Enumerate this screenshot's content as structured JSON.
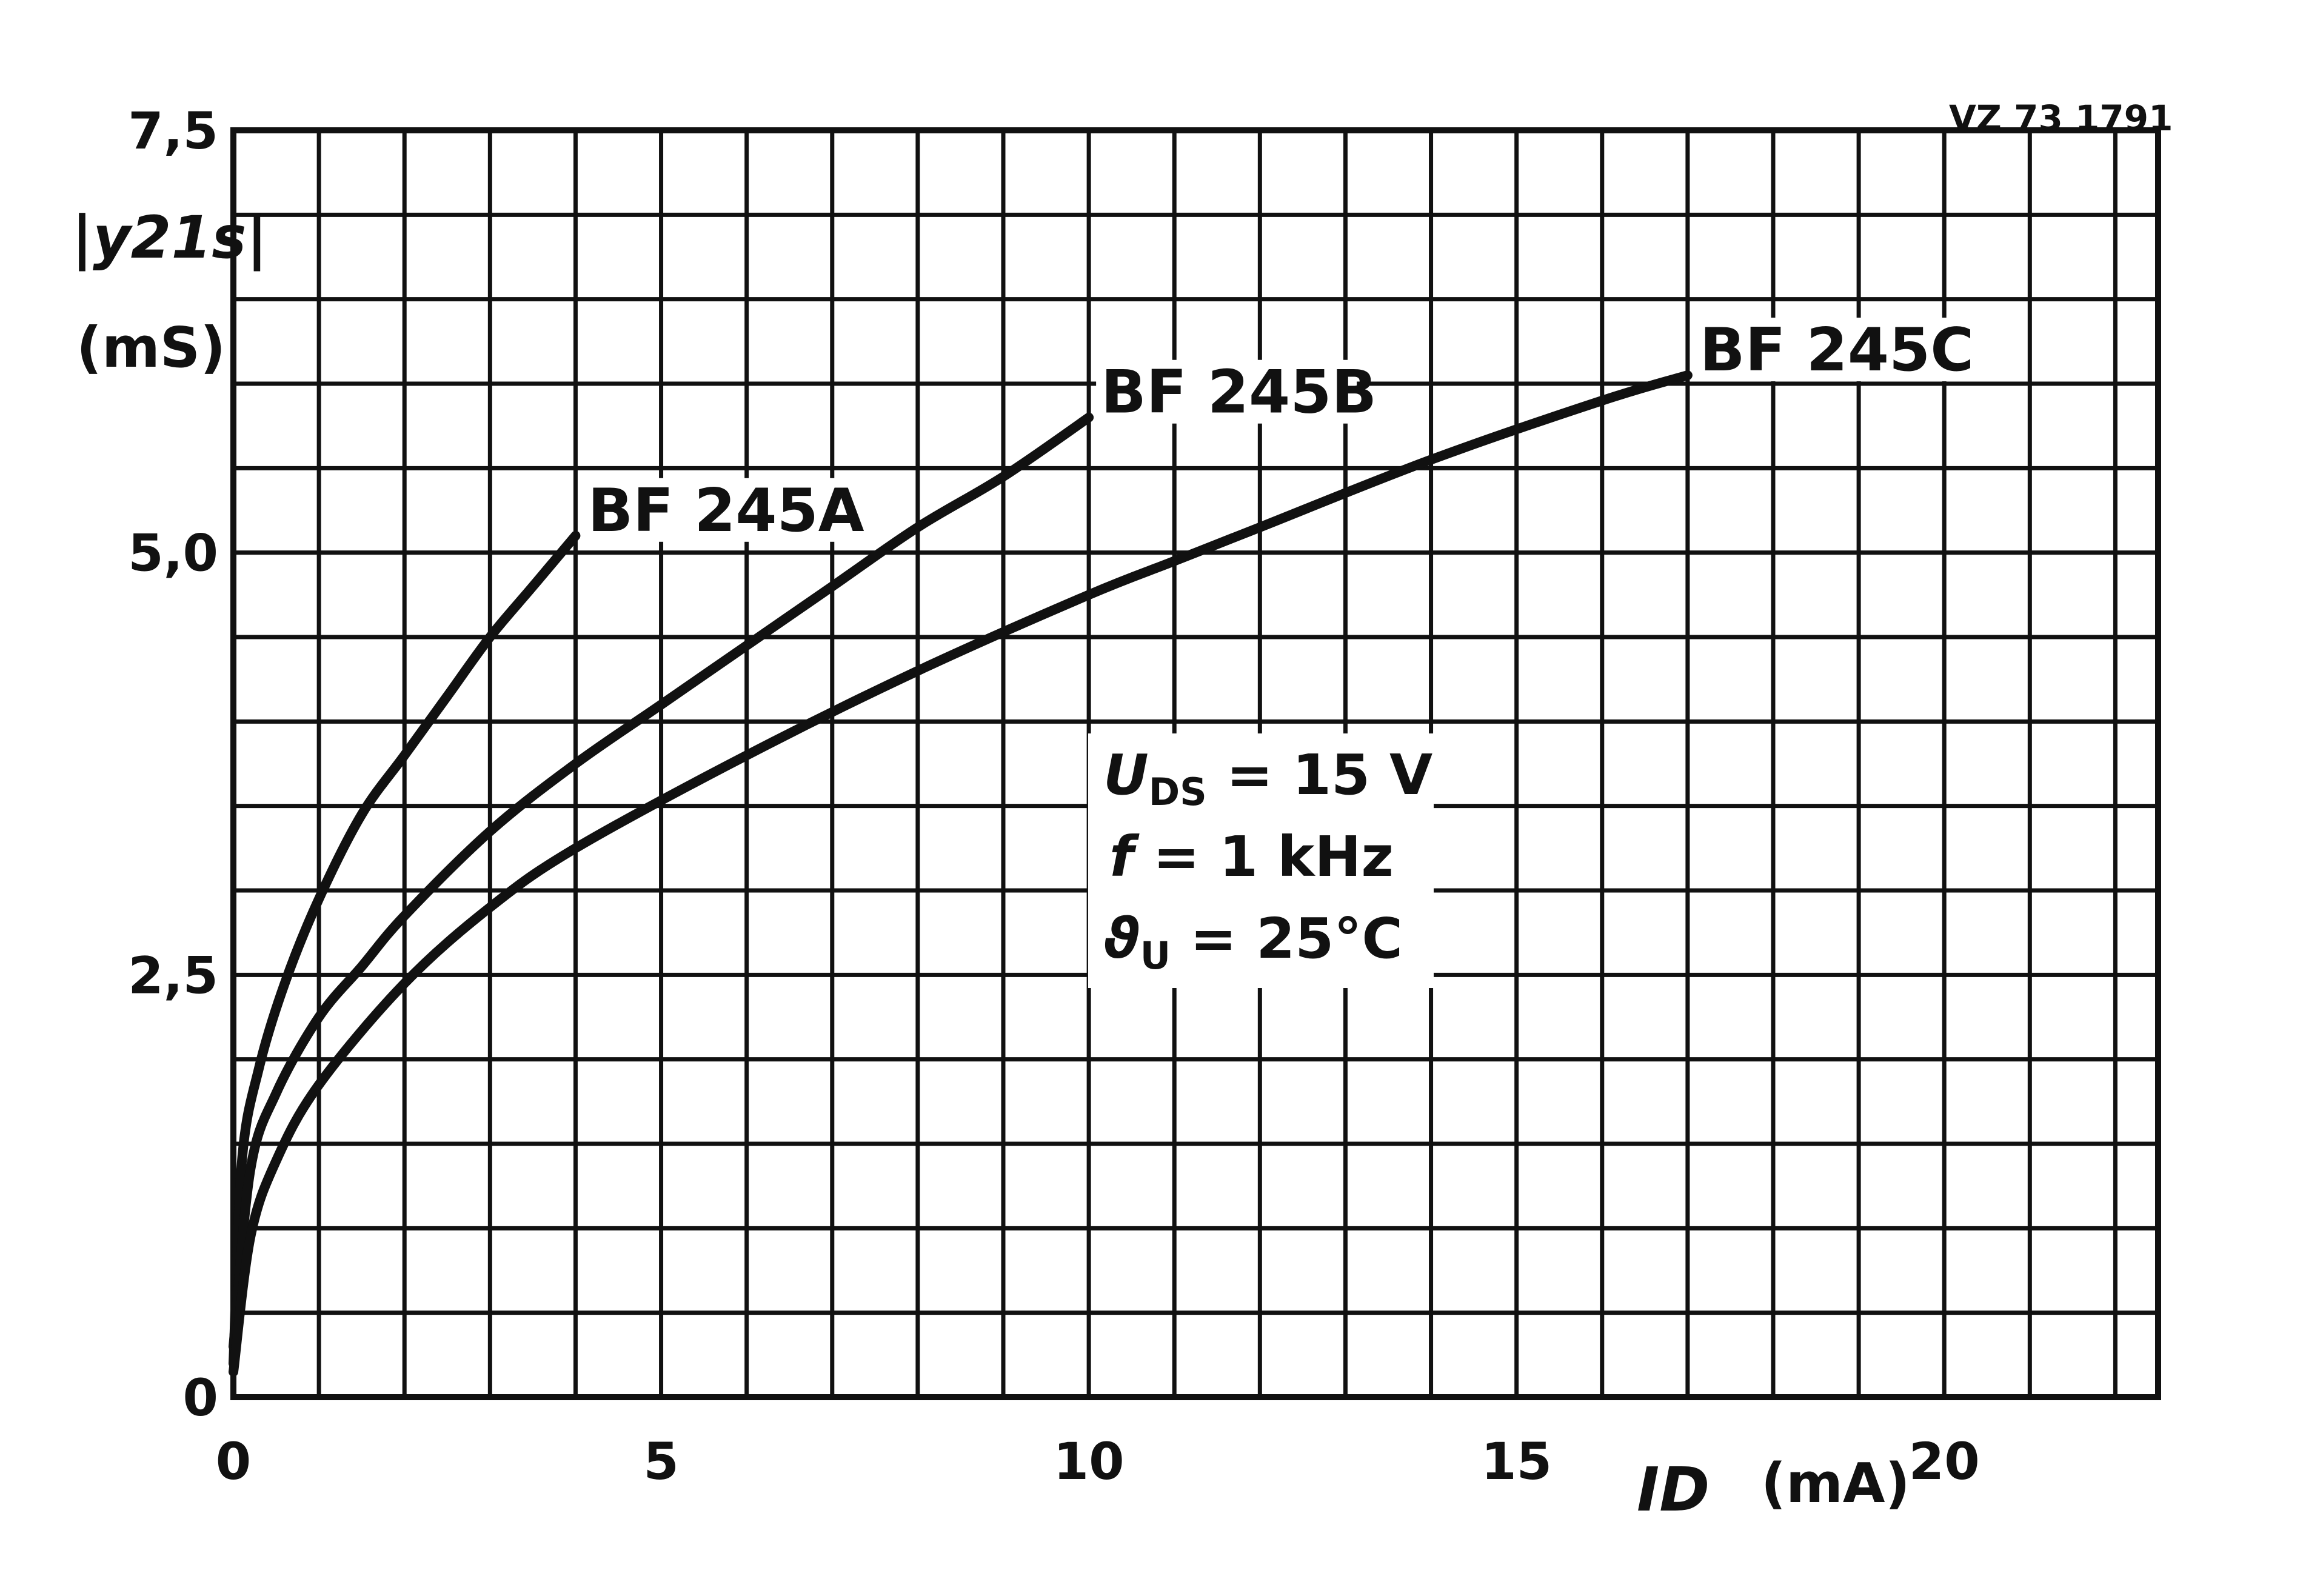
{
  "figure_code": "VZ 73 1791",
  "chart_data": {
    "type": "line",
    "ylabel_line1": "|y21s|",
    "ylabel_line2": "(mS)",
    "xlabel": "ID",
    "xunit": "(mA)",
    "xlim": [
      0,
      22.5
    ],
    "ylim": [
      0,
      7.5
    ],
    "x_ticks": [
      0,
      5,
      10,
      15,
      20
    ],
    "x_tick_labels": [
      "0",
      "5",
      "10",
      "15",
      "20"
    ],
    "y_ticks": [
      0,
      2.5,
      5.0,
      7.5
    ],
    "y_tick_labels": [
      "0",
      "2,5",
      "5,0",
      "7,5"
    ],
    "grid": true,
    "grid_x_step": 1,
    "grid_y_step": 0.5,
    "series": [
      {
        "name": "BF 245A",
        "x": [
          0,
          0.1,
          0.3,
          0.6,
          1.0,
          1.5,
          2.0,
          2.5,
          3.0,
          3.5,
          4.0
        ],
        "y": [
          0.2,
          1.4,
          1.95,
          2.45,
          2.95,
          3.45,
          3.8,
          4.15,
          4.5,
          4.8,
          5.1
        ]
      },
      {
        "name": "BF 245B",
        "x": [
          0,
          0.2,
          0.5,
          1.0,
          1.5,
          2.0,
          3.0,
          4.0,
          5.0,
          6.0,
          7.0,
          8.0,
          9.0,
          10.0
        ],
        "y": [
          0.3,
          1.35,
          1.8,
          2.25,
          2.55,
          2.85,
          3.35,
          3.75,
          4.1,
          4.45,
          4.8,
          5.15,
          5.45,
          5.8
        ]
      },
      {
        "name": "BF 245C",
        "x": [
          0,
          0.2,
          0.5,
          1.0,
          2.0,
          3.0,
          4.0,
          6.0,
          8.0,
          10.0,
          11.0,
          12.0,
          14.0,
          16.0,
          17.0
        ],
        "y": [
          0.15,
          0.95,
          1.4,
          1.85,
          2.45,
          2.9,
          3.25,
          3.8,
          4.3,
          4.75,
          4.95,
          5.15,
          5.55,
          5.9,
          6.05
        ]
      }
    ]
  },
  "conditions": {
    "line1_sym": "U",
    "line1_sub": "DS",
    "line1_val": " = 15  V",
    "line2_sym": "f",
    "line2_val": "   = 1  kHz",
    "line3_sym": "ϑ",
    "line3_sub": "U",
    "line3_val": "  = 25°C"
  },
  "colors": {
    "ink": "#111111",
    "background": "#ffffff"
  }
}
